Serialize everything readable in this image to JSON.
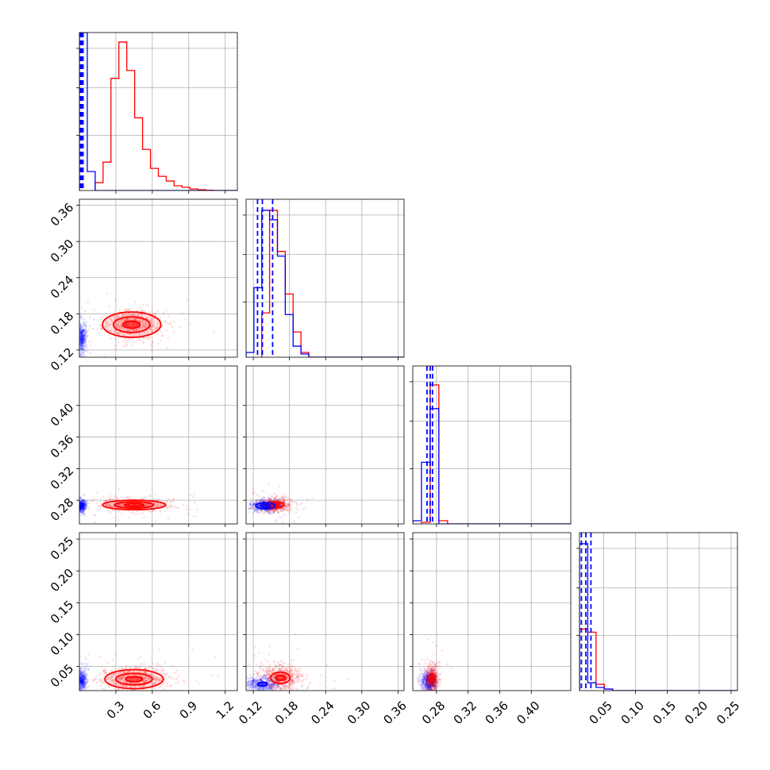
{
  "chart_data": {
    "type": "corner",
    "colors": {
      "blue": "#0000ff",
      "red": "#ff0000",
      "grid": "#b0b0b0"
    },
    "series": [
      {
        "color": "#0000ff"
      },
      {
        "color": "#ff0000"
      }
    ],
    "parameters": [
      {
        "range": [
          0,
          1.3
        ],
        "ticks": [
          0.3,
          0.6,
          0.9,
          1.2
        ],
        "tick_labels": [
          "0.3",
          "0.6",
          "0.9",
          "1.2"
        ],
        "blue_median": 0.02,
        "blue_quantiles": [
          0.01,
          0.03
        ],
        "blue_hist": {
          "bins": [
            0,
            0.065,
            0.13
          ],
          "counts": [
            1.0,
            0.12
          ]
        },
        "red_hist": {
          "bins": [
            0.13,
            0.195,
            0.26,
            0.325,
            0.39,
            0.455,
            0.52,
            0.585,
            0.65,
            0.715,
            0.78,
            0.845,
            0.91,
            0.975,
            1.04,
            1.105
          ],
          "counts": [
            0.05,
            0.18,
            0.71,
            0.94,
            0.76,
            0.46,
            0.26,
            0.14,
            0.09,
            0.06,
            0.03,
            0.02,
            0.01,
            0.005,
            0.002
          ]
        }
      },
      {
        "range": [
          0.108,
          0.37
        ],
        "ticks": [
          0.12,
          0.18,
          0.24,
          0.3,
          0.36
        ],
        "tick_labels": [
          "0.12",
          "0.18",
          "0.24",
          "0.30",
          "0.36"
        ],
        "blue_median": 0.135,
        "blue_quantiles": [
          0.127,
          0.152
        ],
        "blue_hist": {
          "bins": [
            0.108,
            0.121,
            0.134,
            0.147,
            0.16,
            0.173,
            0.186,
            0.199,
            0.212
          ],
          "counts": [
            0.03,
            0.44,
            0.93,
            0.87,
            0.64,
            0.27,
            0.07,
            0.02
          ]
        },
        "red_hist": {
          "bins": [
            0.134,
            0.147,
            0.16,
            0.173,
            0.186,
            0.199,
            0.212
          ],
          "counts": [
            0.28,
            0.93,
            0.67,
            0.4,
            0.16,
            0.03
          ]
        }
      },
      {
        "range": [
          0.25,
          0.45
        ],
        "ticks": [
          0.28,
          0.32,
          0.36,
          0.4
        ],
        "tick_labels": [
          "0.28",
          "0.32",
          "0.36",
          "0.40"
        ],
        "blue_median": 0.272,
        "blue_quantiles": [
          0.268,
          0.275
        ],
        "blue_hist": {
          "bins": [
            0.25,
            0.261,
            0.272,
            0.283
          ],
          "counts": [
            0.02,
            0.39,
            0.73
          ]
        },
        "red_hist": {
          "bins": [
            0.261,
            0.272,
            0.283,
            0.294
          ],
          "counts": [
            0.01,
            0.88,
            0.02
          ]
        }
      },
      {
        "range": [
          0.012,
          0.26
        ],
        "ticks": [
          0.05,
          0.1,
          0.15,
          0.2,
          0.25
        ],
        "tick_labels": [
          "0.05",
          "0.10",
          "0.15",
          "0.20",
          "0.25"
        ],
        "blue_median": 0.022,
        "blue_quantiles": [
          0.015,
          0.03
        ],
        "blue_hist": {
          "bins": [
            0.012,
            0.025,
            0.038,
            0.051,
            0.064
          ],
          "counts": [
            0.93,
            0.05,
            0.02,
            0.01
          ]
        },
        "red_hist": {
          "bins": [
            0.012,
            0.025,
            0.038,
            0.051,
            0.064
          ],
          "counts": [
            0.39,
            0.37,
            0.04,
            0.01
          ]
        }
      }
    ],
    "pairs": [
      {
        "row": 1,
        "col": 0,
        "blue_center": [
          0.02,
          0.14
        ],
        "blue_spread": [
          0.018,
          0.012
        ],
        "red_center": [
          0.43,
          0.162
        ],
        "red_spread": [
          0.12,
          0.012
        ],
        "red_contours": [
          [
            0.07,
            0.006
          ],
          [
            0.15,
            0.013
          ],
          [
            0.24,
            0.021
          ]
        ]
      },
      {
        "row": 2,
        "col": 0,
        "blue_center": [
          0.02,
          0.273
        ],
        "blue_spread": [
          0.018,
          0.004
        ],
        "red_center": [
          0.45,
          0.274
        ],
        "red_spread": [
          0.13,
          0.004
        ],
        "red_contours": [
          [
            0.08,
            0.002
          ],
          [
            0.16,
            0.004
          ],
          [
            0.26,
            0.006
          ]
        ]
      },
      {
        "row": 2,
        "col": 1,
        "blue_center": [
          0.14,
          0.273
        ],
        "blue_spread": [
          0.012,
          0.004
        ],
        "red_center": [
          0.155,
          0.274
        ],
        "red_spread": [
          0.012,
          0.004
        ],
        "red_contours": [
          [
            0.008,
            0.002
          ],
          [
            0.016,
            0.004
          ]
        ],
        "blue_contours": [
          [
            0.008,
            0.002
          ],
          [
            0.016,
            0.004
          ]
        ]
      },
      {
        "row": 3,
        "col": 0,
        "blue_center": [
          0.02,
          0.028
        ],
        "blue_spread": [
          0.018,
          0.008
        ],
        "red_center": [
          0.45,
          0.03
        ],
        "red_spread": [
          0.14,
          0.01
        ],
        "red_contours": [
          [
            0.07,
            0.004
          ],
          [
            0.15,
            0.009
          ],
          [
            0.24,
            0.015
          ]
        ]
      },
      {
        "row": 3,
        "col": 1,
        "blue_center": [
          0.135,
          0.022
        ],
        "blue_spread": [
          0.014,
          0.006
        ],
        "red_center": [
          0.165,
          0.032
        ],
        "red_spread": [
          0.016,
          0.01
        ],
        "red_contours": [
          [
            0.008,
            0.004
          ],
          [
            0.016,
            0.009
          ]
        ],
        "blue_contours": [
          [
            0.008,
            0.003
          ]
        ]
      },
      {
        "row": 3,
        "col": 2,
        "blue_center": [
          0.27,
          0.025
        ],
        "blue_spread": [
          0.005,
          0.008
        ],
        "red_center": [
          0.274,
          0.03
        ],
        "red_spread": [
          0.004,
          0.01
        ],
        "red_contours": [
          [
            0.002,
            0.004
          ],
          [
            0.004,
            0.009
          ]
        ]
      }
    ]
  }
}
